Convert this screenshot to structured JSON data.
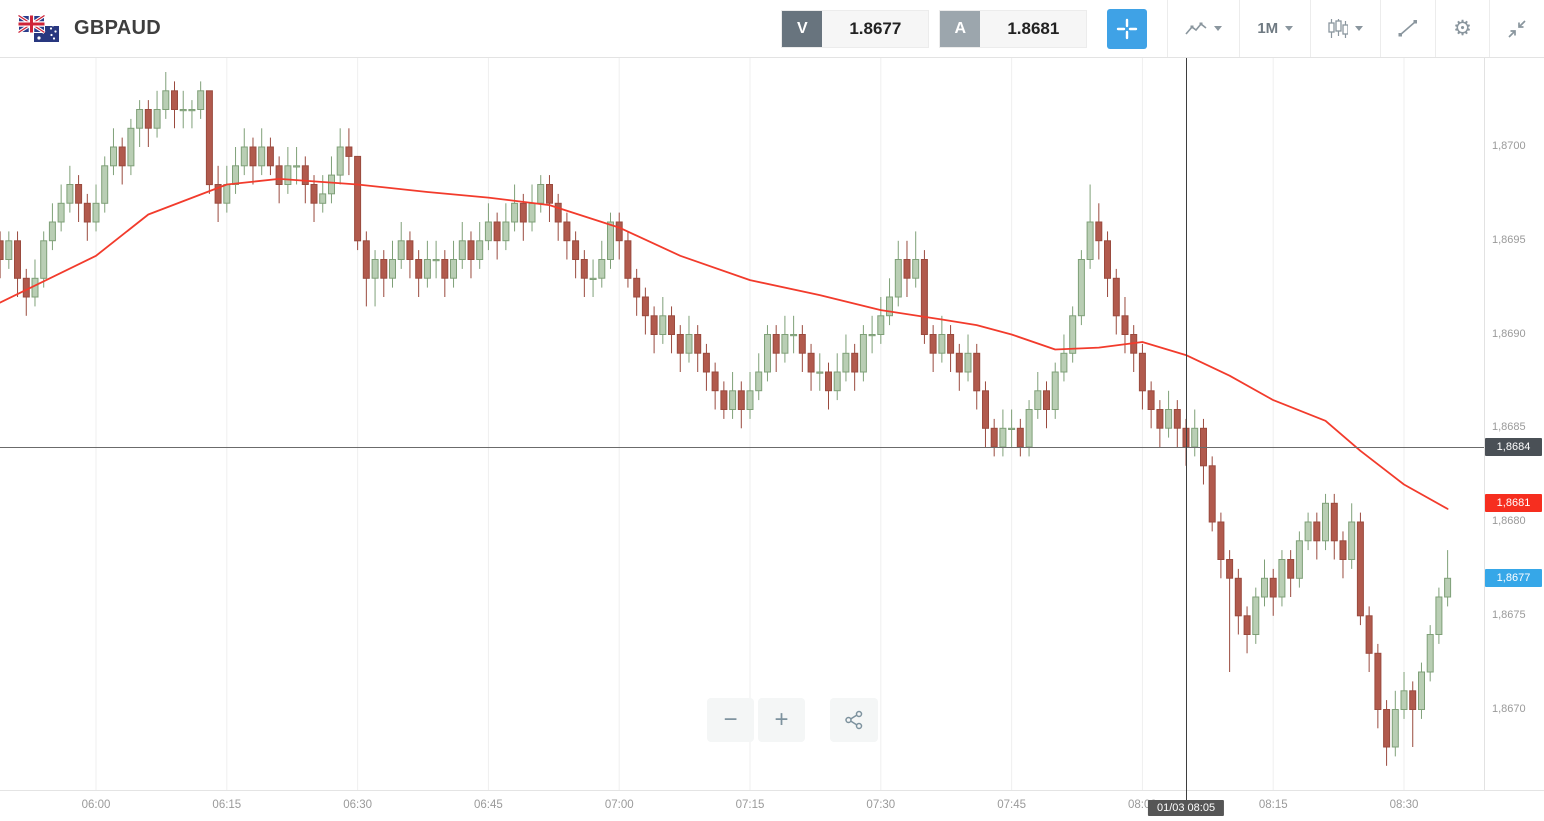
{
  "header": {
    "symbol": "GBPAUD",
    "accent_color": "#3fa2e6",
    "sell": {
      "label": "V",
      "price": "1.8677",
      "button_color": "#68747e"
    },
    "buy": {
      "label": "A",
      "price": "1.8681",
      "button_color": "#9ca6ad"
    },
    "timeframe": "1M"
  },
  "icons": {
    "settings_glyph": "⚙"
  },
  "controls": {
    "zoom_out_label": "−",
    "zoom_in_label": "+"
  },
  "overlays": {
    "current_price": {
      "text": "1,8684",
      "value": 1.8684,
      "color": "#4a5056"
    },
    "ask": {
      "text": "1,8681",
      "value": 1.8681,
      "color": "#f62e1f"
    },
    "bid": {
      "text": "1,8677",
      "value": 1.8677,
      "color": "#36a7e8"
    },
    "crosshair": {
      "text": "01/03 08:05",
      "index": 136
    }
  },
  "chart_data": {
    "type": "candlestick",
    "symbol": "GBPAUD",
    "interval_minutes": 1,
    "start_time": "05:49",
    "x_axis": {
      "tick_labels": [
        "06:00",
        "06:15",
        "06:30",
        "06:45",
        "07:00",
        "07:15",
        "07:30",
        "07:45",
        "08:00",
        "08:15",
        "08:30"
      ],
      "tick_indices": [
        11,
        26,
        41,
        56,
        71,
        86,
        101,
        116,
        131,
        146,
        161
      ]
    },
    "y_axis": {
      "range": [
        1.8666,
        1.8705
      ],
      "ticks": [
        {
          "text": "1,8700",
          "value": 1.87
        },
        {
          "text": "1,8695",
          "value": 1.8695
        },
        {
          "text": "1,8690",
          "value": 1.869
        },
        {
          "text": "1,8685",
          "value": 1.8685
        },
        {
          "text": "1,8680",
          "value": 1.868
        },
        {
          "text": "1,8675",
          "value": 1.8675
        },
        {
          "text": "1,8670",
          "value": 1.867
        }
      ]
    },
    "colors": {
      "up_fill": "#b9ceb4",
      "up_stroke": "#7fa078",
      "down_fill": "#b15a4d",
      "down_stroke": "#9a4a3e",
      "grid": "#efefef"
    },
    "ohlc": [
      [
        1.8695,
        1.86955,
        1.8693,
        1.8694
      ],
      [
        1.8694,
        1.86955,
        1.86935,
        1.8695
      ],
      [
        1.8695,
        1.86955,
        1.8692,
        1.8693
      ],
      [
        1.8693,
        1.86935,
        1.8691,
        1.8692
      ],
      [
        1.8692,
        1.8694,
        1.86915,
        1.8693
      ],
      [
        1.8693,
        1.86955,
        1.86925,
        1.8695
      ],
      [
        1.8695,
        1.8697,
        1.86945,
        1.8696
      ],
      [
        1.8696,
        1.8698,
        1.86955,
        1.8697
      ],
      [
        1.8697,
        1.8699,
        1.86965,
        1.8698
      ],
      [
        1.8698,
        1.86985,
        1.8696,
        1.8697
      ],
      [
        1.8697,
        1.86975,
        1.8695,
        1.8696
      ],
      [
        1.8696,
        1.8698,
        1.86955,
        1.8697
      ],
      [
        1.8697,
        1.86995,
        1.86965,
        1.8699
      ],
      [
        1.8699,
        1.8701,
        1.86985,
        1.87
      ],
      [
        1.87,
        1.87005,
        1.8698,
        1.8699
      ],
      [
        1.8699,
        1.87015,
        1.86985,
        1.8701
      ],
      [
        1.8701,
        1.87025,
        1.87,
        1.8702
      ],
      [
        1.8702,
        1.87025,
        1.87,
        1.8701
      ],
      [
        1.8701,
        1.8703,
        1.87005,
        1.8702
      ],
      [
        1.8702,
        1.8704,
        1.87015,
        1.8703
      ],
      [
        1.8703,
        1.87035,
        1.8701,
        1.8702
      ],
      [
        1.8702,
        1.8703,
        1.8701,
        1.8702
      ],
      [
        1.8702,
        1.87025,
        1.8701,
        1.8702
      ],
      [
        1.8702,
        1.87035,
        1.87015,
        1.8703
      ],
      [
        1.8703,
        1.8703,
        1.86975,
        1.8698
      ],
      [
        1.8698,
        1.8699,
        1.8696,
        1.8697
      ],
      [
        1.8697,
        1.8699,
        1.86965,
        1.8698
      ],
      [
        1.8698,
        1.87,
        1.86975,
        1.8699
      ],
      [
        1.8699,
        1.8701,
        1.86985,
        1.87
      ],
      [
        1.87,
        1.87005,
        1.8698,
        1.8699
      ],
      [
        1.8699,
        1.8701,
        1.86985,
        1.87
      ],
      [
        1.87,
        1.87005,
        1.86985,
        1.8699
      ],
      [
        1.8699,
        1.86995,
        1.8697,
        1.8698
      ],
      [
        1.8698,
        1.87,
        1.86975,
        1.8699
      ],
      [
        1.8699,
        1.87,
        1.8698,
        1.8699
      ],
      [
        1.8699,
        1.86995,
        1.8697,
        1.8698
      ],
      [
        1.8698,
        1.86985,
        1.8696,
        1.8697
      ],
      [
        1.8697,
        1.86985,
        1.86965,
        1.86975
      ],
      [
        1.86975,
        1.86995,
        1.8697,
        1.86985
      ],
      [
        1.86985,
        1.8701,
        1.8698,
        1.87
      ],
      [
        1.87,
        1.8701,
        1.86985,
        1.86995
      ],
      [
        1.86995,
        1.86995,
        1.86945,
        1.8695
      ],
      [
        1.8695,
        1.86955,
        1.86915,
        1.8693
      ],
      [
        1.8693,
        1.86945,
        1.86915,
        1.8694
      ],
      [
        1.8694,
        1.86945,
        1.8692,
        1.8693
      ],
      [
        1.8693,
        1.8695,
        1.86925,
        1.8694
      ],
      [
        1.8694,
        1.8696,
        1.86935,
        1.8695
      ],
      [
        1.8695,
        1.86955,
        1.8693,
        1.8694
      ],
      [
        1.8694,
        1.86945,
        1.8692,
        1.8693
      ],
      [
        1.8693,
        1.8695,
        1.86925,
        1.8694
      ],
      [
        1.8694,
        1.8695,
        1.8693,
        1.8694
      ],
      [
        1.8694,
        1.86945,
        1.8692,
        1.8693
      ],
      [
        1.8693,
        1.8695,
        1.86925,
        1.8694
      ],
      [
        1.8694,
        1.8696,
        1.86935,
        1.8695
      ],
      [
        1.8695,
        1.86955,
        1.8693,
        1.8694
      ],
      [
        1.8694,
        1.8696,
        1.86935,
        1.8695
      ],
      [
        1.8695,
        1.8697,
        1.86945,
        1.8696
      ],
      [
        1.8696,
        1.86965,
        1.8694,
        1.8695
      ],
      [
        1.8695,
        1.8697,
        1.86945,
        1.8696
      ],
      [
        1.8696,
        1.8698,
        1.86955,
        1.8697
      ],
      [
        1.8697,
        1.86975,
        1.8695,
        1.8696
      ],
      [
        1.8696,
        1.8698,
        1.86955,
        1.8697
      ],
      [
        1.8697,
        1.86985,
        1.86965,
        1.8698
      ],
      [
        1.8698,
        1.86985,
        1.8696,
        1.8697
      ],
      [
        1.8697,
        1.86975,
        1.8695,
        1.8696
      ],
      [
        1.8696,
        1.86965,
        1.8694,
        1.8695
      ],
      [
        1.8695,
        1.86955,
        1.8693,
        1.8694
      ],
      [
        1.8694,
        1.86945,
        1.8692,
        1.8693
      ],
      [
        1.8693,
        1.8694,
        1.8692,
        1.8693
      ],
      [
        1.8693,
        1.8695,
        1.86925,
        1.8694
      ],
      [
        1.8694,
        1.86965,
        1.86935,
        1.8696
      ],
      [
        1.8696,
        1.86965,
        1.8694,
        1.8695
      ],
      [
        1.8695,
        1.86955,
        1.86925,
        1.8693
      ],
      [
        1.8693,
        1.86935,
        1.8691,
        1.8692
      ],
      [
        1.8692,
        1.86925,
        1.869,
        1.8691
      ],
      [
        1.8691,
        1.86915,
        1.8689,
        1.869
      ],
      [
        1.869,
        1.8692,
        1.86895,
        1.8691
      ],
      [
        1.8691,
        1.86915,
        1.8689,
        1.869
      ],
      [
        1.869,
        1.86905,
        1.8688,
        1.8689
      ],
      [
        1.8689,
        1.8691,
        1.86885,
        1.869
      ],
      [
        1.869,
        1.86905,
        1.8688,
        1.8689
      ],
      [
        1.8689,
        1.86895,
        1.8687,
        1.8688
      ],
      [
        1.8688,
        1.86885,
        1.8686,
        1.8687
      ],
      [
        1.8687,
        1.86875,
        1.86855,
        1.8686
      ],
      [
        1.8686,
        1.8688,
        1.86855,
        1.8687
      ],
      [
        1.8687,
        1.86875,
        1.8685,
        1.8686
      ],
      [
        1.8686,
        1.8688,
        1.86855,
        1.8687
      ],
      [
        1.8687,
        1.8689,
        1.86865,
        1.8688
      ],
      [
        1.8688,
        1.86905,
        1.86875,
        1.869
      ],
      [
        1.869,
        1.86905,
        1.8688,
        1.8689
      ],
      [
        1.8689,
        1.8691,
        1.86885,
        1.869
      ],
      [
        1.869,
        1.8691,
        1.8689,
        1.869
      ],
      [
        1.869,
        1.86905,
        1.8688,
        1.8689
      ],
      [
        1.8689,
        1.86895,
        1.8687,
        1.8688
      ],
      [
        1.8688,
        1.8689,
        1.8687,
        1.8688
      ],
      [
        1.8688,
        1.86885,
        1.8686,
        1.8687
      ],
      [
        1.8687,
        1.8689,
        1.86865,
        1.8688
      ],
      [
        1.8688,
        1.869,
        1.86875,
        1.8689
      ],
      [
        1.8689,
        1.86895,
        1.8687,
        1.8688
      ],
      [
        1.8688,
        1.86905,
        1.86875,
        1.869
      ],
      [
        1.869,
        1.8691,
        1.8689,
        1.869
      ],
      [
        1.869,
        1.8692,
        1.86895,
        1.8691
      ],
      [
        1.8691,
        1.8693,
        1.86905,
        1.8692
      ],
      [
        1.8692,
        1.8695,
        1.86915,
        1.8694
      ],
      [
        1.8694,
        1.8695,
        1.8692,
        1.8693
      ],
      [
        1.8693,
        1.86955,
        1.86925,
        1.8694
      ],
      [
        1.8694,
        1.86945,
        1.86895,
        1.869
      ],
      [
        1.869,
        1.86905,
        1.8688,
        1.8689
      ],
      [
        1.8689,
        1.8691,
        1.86885,
        1.869
      ],
      [
        1.869,
        1.86905,
        1.8688,
        1.8689
      ],
      [
        1.8689,
        1.86895,
        1.8687,
        1.8688
      ],
      [
        1.8688,
        1.869,
        1.86875,
        1.8689
      ],
      [
        1.8689,
        1.86895,
        1.8686,
        1.8687
      ],
      [
        1.8687,
        1.86875,
        1.8684,
        1.8685
      ],
      [
        1.8685,
        1.86855,
        1.86835,
        1.8684
      ],
      [
        1.8684,
        1.8686,
        1.86835,
        1.8685
      ],
      [
        1.8685,
        1.8686,
        1.8684,
        1.8685
      ],
      [
        1.8685,
        1.86855,
        1.86835,
        1.8684
      ],
      [
        1.8684,
        1.86865,
        1.86835,
        1.8686
      ],
      [
        1.8686,
        1.8688,
        1.86855,
        1.8687
      ],
      [
        1.8687,
        1.86875,
        1.8685,
        1.8686
      ],
      [
        1.8686,
        1.86885,
        1.86855,
        1.8688
      ],
      [
        1.8688,
        1.869,
        1.86875,
        1.8689
      ],
      [
        1.8689,
        1.86915,
        1.86885,
        1.8691
      ],
      [
        1.8691,
        1.86945,
        1.86905,
        1.8694
      ],
      [
        1.8694,
        1.8698,
        1.86935,
        1.8696
      ],
      [
        1.8696,
        1.8697,
        1.8694,
        1.8695
      ],
      [
        1.8695,
        1.86955,
        1.8692,
        1.8693
      ],
      [
        1.8693,
        1.86935,
        1.869,
        1.8691
      ],
      [
        1.8691,
        1.8692,
        1.8689,
        1.869
      ],
      [
        1.869,
        1.86905,
        1.8688,
        1.8689
      ],
      [
        1.8689,
        1.86895,
        1.8686,
        1.8687
      ],
      [
        1.8687,
        1.86875,
        1.8685,
        1.8686
      ],
      [
        1.8686,
        1.86865,
        1.8684,
        1.8685
      ],
      [
        1.8685,
        1.8687,
        1.86845,
        1.8686
      ],
      [
        1.8686,
        1.86865,
        1.8684,
        1.8685
      ],
      [
        1.8685,
        1.86855,
        1.8683,
        1.8684
      ],
      [
        1.8684,
        1.8686,
        1.86835,
        1.8685
      ],
      [
        1.8685,
        1.86855,
        1.8682,
        1.8683
      ],
      [
        1.8683,
        1.86835,
        1.86795,
        1.868
      ],
      [
        1.868,
        1.86805,
        1.8677,
        1.8678
      ],
      [
        1.8678,
        1.86785,
        1.8672,
        1.8677
      ],
      [
        1.8677,
        1.86775,
        1.8674,
        1.8675
      ],
      [
        1.8675,
        1.86755,
        1.8673,
        1.8674
      ],
      [
        1.8674,
        1.86765,
        1.86735,
        1.8676
      ],
      [
        1.8676,
        1.8678,
        1.86755,
        1.8677
      ],
      [
        1.8677,
        1.86775,
        1.8675,
        1.8676
      ],
      [
        1.8676,
        1.86785,
        1.86755,
        1.8678
      ],
      [
        1.8678,
        1.86785,
        1.8676,
        1.8677
      ],
      [
        1.8677,
        1.86795,
        1.86765,
        1.8679
      ],
      [
        1.8679,
        1.86805,
        1.86785,
        1.868
      ],
      [
        1.868,
        1.86805,
        1.8678,
        1.8679
      ],
      [
        1.8679,
        1.86815,
        1.86785,
        1.8681
      ],
      [
        1.8681,
        1.86815,
        1.8678,
        1.8679
      ],
      [
        1.8679,
        1.86795,
        1.8677,
        1.8678
      ],
      [
        1.8678,
        1.8681,
        1.86775,
        1.868
      ],
      [
        1.868,
        1.86805,
        1.86745,
        1.8675
      ],
      [
        1.8675,
        1.86755,
        1.8672,
        1.8673
      ],
      [
        1.8673,
        1.86735,
        1.8669,
        1.867
      ],
      [
        1.867,
        1.86705,
        1.8667,
        1.8668
      ],
      [
        1.8668,
        1.8671,
        1.86675,
        1.867
      ],
      [
        1.867,
        1.8672,
        1.86695,
        1.8671
      ],
      [
        1.8671,
        1.86715,
        1.8668,
        1.867
      ],
      [
        1.867,
        1.86725,
        1.86695,
        1.8672
      ],
      [
        1.8672,
        1.86745,
        1.86715,
        1.8674
      ],
      [
        1.8674,
        1.86765,
        1.86735,
        1.8676
      ],
      [
        1.8676,
        1.86785,
        1.86755,
        1.8677
      ]
    ],
    "ma": {
      "name": "moving-average",
      "color": "#f23b2c",
      "points": [
        [
          0,
          1.86917
        ],
        [
          11,
          1.86942
        ],
        [
          17,
          1.86964
        ],
        [
          26,
          1.8698
        ],
        [
          32,
          1.86983
        ],
        [
          41,
          1.8698
        ],
        [
          49,
          1.86976
        ],
        [
          56,
          1.86973
        ],
        [
          63,
          1.86969
        ],
        [
          71,
          1.86957
        ],
        [
          78,
          1.86942
        ],
        [
          86,
          1.86929
        ],
        [
          94,
          1.86921
        ],
        [
          101,
          1.86913
        ],
        [
          108,
          1.86908
        ],
        [
          112,
          1.86905
        ],
        [
          116,
          1.869
        ],
        [
          121,
          1.86892
        ],
        [
          126,
          1.86893
        ],
        [
          131,
          1.86896
        ],
        [
          136,
          1.86889
        ],
        [
          141,
          1.86878
        ],
        [
          146,
          1.86865
        ],
        [
          152,
          1.86854
        ],
        [
          156,
          1.86838
        ],
        [
          161,
          1.8682
        ],
        [
          166,
          1.86807
        ]
      ]
    }
  }
}
